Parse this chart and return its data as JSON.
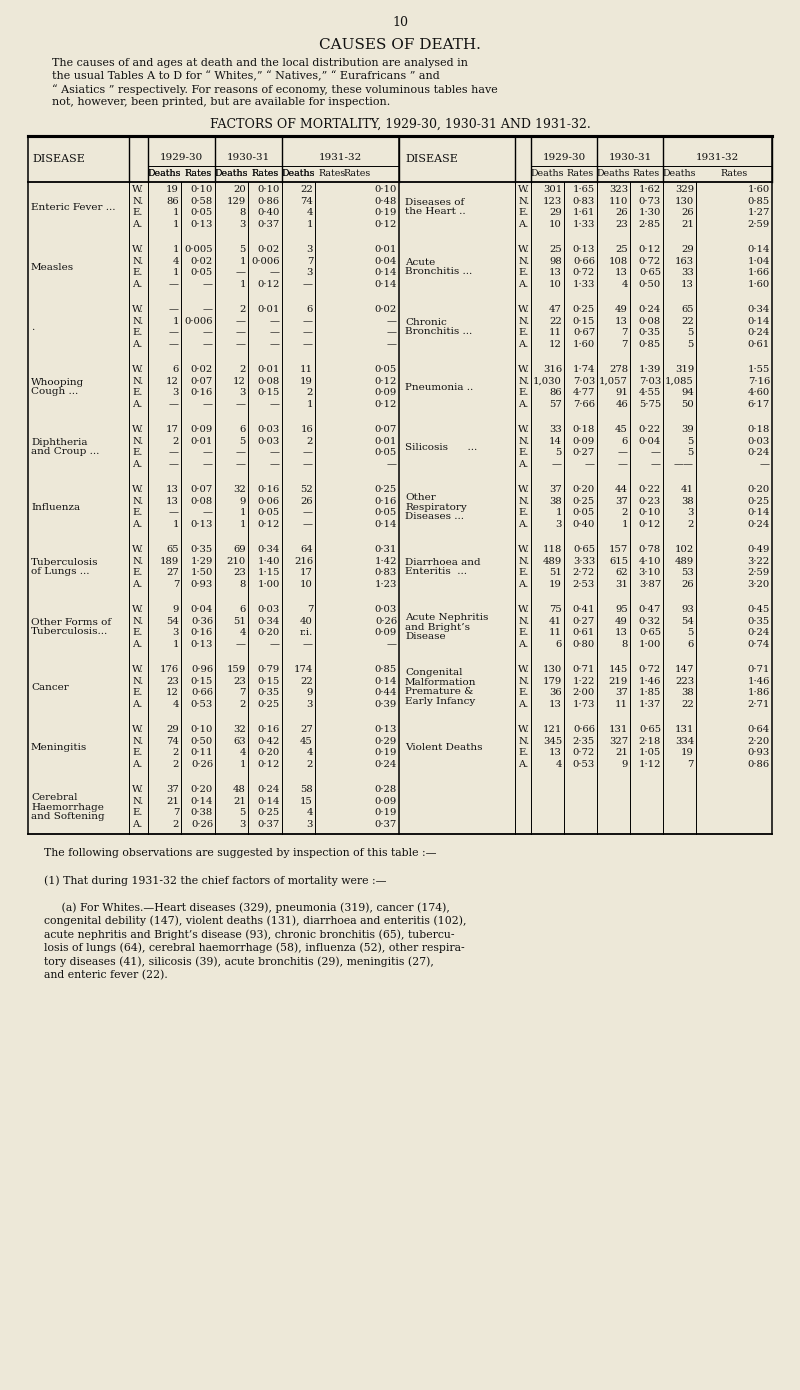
{
  "page_number": "10",
  "main_title": "CAUSES OF DEATH.",
  "intro_text": "The causes of and ages at death and the local distribution are analysed in\nthe usual Tables A to D for “ Whites,” “ Natives,” “ Eurafricans ” and\n“ Asiatics ” respectively. For reasons of economy, these voluminous tables have\nnot, however, been printed, but are available for inspection.",
  "table_title": "FACTORS OF MORTALITY, 1929-30, 1930-31 AND 1931-32.",
  "bg_color": "#ede8d8",
  "text_color": "#111111",
  "footer_text": "The following observations are suggested by inspection of this table :—\n\n(1) That during 1931-32 the chief factors of mortality were :—\n\n     (a) For Whites.—Heart diseases (329), pneumonia (319), cancer (174),\ncongenital debility (147), violent deaths (131), diarrhoea and enteritis (102),\nacute nephritis and Bright’s disease (93), chronic bronchitis (65), tubercu-\nlosis of lungs (64), cerebral haemorrhage (58), influenza (52), other respira-\ntory diseases (41), silicosis (39), acute bronchitis (29), meningitis (27),\nand enteric fever (22).",
  "left_diseases": [
    "Enteric Fever ...",
    "Measles",
    ".",
    "Whooping\nCough ...",
    "Diphtheria\nand Croup ...",
    "Influenza",
    "Tuberculosis\nof Lungs ...",
    "Other Forms of\nTuberculosis...",
    "Cancer",
    "Meningitis",
    "Cerebral\nHaemorrhage\nand Softening"
  ],
  "right_diseases": [
    "Diseases of\nthe Heart ..",
    "Acute\nBronchitis ...",
    "Chronic\nBronchitis ...",
    "Pneumonia ..",
    "Silicosis      ...",
    "Other\nRespiratory\nDiseases ...",
    "Diarrhoea and\nEnteritis  ...",
    "Acute Nephritis\nand Bright’s\nDisease",
    "Congenital\nMalformation\nPremature &\nEarly Infancy",
    "Violent Deaths",
    ""
  ],
  "left_data": [
    [
      [
        "W",
        "19",
        "0·10",
        "20",
        "0·10",
        "22",
        "0·10"
      ],
      [
        "N",
        "86",
        "0·58",
        "129",
        "0·86",
        "74",
        "0·48"
      ],
      [
        "E",
        "1",
        "0·05",
        "8",
        "0·40",
        "4",
        "0·19"
      ],
      [
        "A",
        "1",
        "0·13",
        "3",
        "0·37",
        "1",
        "0·12"
      ]
    ],
    [
      [
        "W",
        "1",
        "0·005",
        "5",
        "0·02",
        "3",
        "0·01"
      ],
      [
        "N",
        "4",
        "0·02",
        "1",
        "0·006",
        "7",
        "0·04"
      ],
      [
        "E",
        "1",
        "0·05",
        "—",
        "—",
        "3",
        "0·14"
      ],
      [
        "A",
        "—",
        "—",
        "1",
        "0·12",
        "—",
        "0·14"
      ]
    ],
    [
      [
        "W",
        "—",
        "—",
        "2",
        "0·01",
        "6",
        "0·02"
      ],
      [
        "N",
        "1",
        "0·006",
        "—",
        "—",
        "—",
        "—"
      ],
      [
        "E",
        "—",
        "—",
        "—",
        "—",
        "—",
        "—"
      ],
      [
        "A",
        "—",
        "—",
        "—",
        "—",
        "—",
        "—"
      ]
    ],
    [
      [
        "W",
        "6",
        "0·02",
        "2",
        "0·01",
        "11",
        "0·05"
      ],
      [
        "N",
        "12",
        "0·07",
        "12",
        "0·08",
        "19",
        "0·12"
      ],
      [
        "E",
        "3",
        "0·16",
        "3",
        "0·15",
        "2",
        "0·09"
      ],
      [
        "A",
        "—",
        "—",
        "—",
        "—",
        "1",
        "0·12"
      ]
    ],
    [
      [
        "W",
        "17",
        "0·09",
        "6",
        "0·03",
        "16",
        "0·07"
      ],
      [
        "N",
        "2",
        "0·01",
        "5",
        "0·03",
        "2",
        "0·01"
      ],
      [
        "E",
        "—",
        "—",
        "—",
        "—",
        "—",
        "0·05"
      ],
      [
        "A",
        "—",
        "—",
        "—",
        "—",
        "—",
        "—"
      ]
    ],
    [
      [
        "W",
        "13",
        "0·07",
        "32",
        "0·16",
        "52",
        "0·25"
      ],
      [
        "N",
        "13",
        "0·08",
        "9",
        "0·06",
        "26",
        "0·16"
      ],
      [
        "E",
        "—",
        "—",
        "1",
        "0·05",
        "—",
        "0·05"
      ],
      [
        "A",
        "1",
        "0·13",
        "1",
        "0·12",
        "—",
        "0·14"
      ]
    ],
    [
      [
        "W",
        "65",
        "0·35",
        "69",
        "0·34",
        "64",
        "0·31"
      ],
      [
        "N",
        "189",
        "1·29",
        "210",
        "1·40",
        "216",
        "1·42"
      ],
      [
        "E",
        "27",
        "1·50",
        "23",
        "1·15",
        "17",
        "0·83"
      ],
      [
        "A",
        "7",
        "0·93",
        "8",
        "1·00",
        "10",
        "1·23"
      ]
    ],
    [
      [
        "W",
        "9",
        "0·04",
        "6",
        "0·03",
        "7",
        "0·03"
      ],
      [
        "N",
        "54",
        "0·36",
        "51",
        "0·34",
        "40",
        "0·26"
      ],
      [
        "E",
        "3",
        "0·16",
        "4",
        "0·20",
        "r.i.",
        "0·09"
      ],
      [
        "A",
        "1",
        "0·13",
        "—",
        "—",
        "—",
        "—"
      ]
    ],
    [
      [
        "W",
        "176",
        "0·96",
        "159",
        "0·79",
        "174",
        "0·85"
      ],
      [
        "N",
        "23",
        "0·15",
        "23",
        "0·15",
        "22",
        "0·14"
      ],
      [
        "E",
        "12",
        "0·66",
        "7",
        "0·35",
        "9",
        "0·44"
      ],
      [
        "A",
        "4",
        "0·53",
        "2",
        "0·25",
        "3",
        "0·39"
      ]
    ],
    [
      [
        "W",
        "29",
        "0·10",
        "32",
        "0·16",
        "27",
        "0·13"
      ],
      [
        "N",
        "74",
        "0·50",
        "63",
        "0·42",
        "45",
        "0·29"
      ],
      [
        "E",
        "2",
        "0·11",
        "4",
        "0·20",
        "4",
        "0·19"
      ],
      [
        "A",
        "2",
        "0·26",
        "1",
        "0·12",
        "2",
        "0·24"
      ]
    ],
    [
      [
        "W",
        "37",
        "0·20",
        "48",
        "0·24",
        "58",
        "0·28"
      ],
      [
        "N",
        "21",
        "0·14",
        "21",
        "0·14",
        "15",
        "0·09"
      ],
      [
        "E",
        "7",
        "0·38",
        "5",
        "0·25",
        "4",
        "0·19"
      ],
      [
        "A",
        "2",
        "0·26",
        "3",
        "0·37",
        "3",
        "0·37"
      ]
    ]
  ],
  "right_data": [
    [
      [
        "W",
        "301",
        "1·65",
        "323",
        "1·62",
        "329",
        "1·60"
      ],
      [
        "N",
        "123",
        "0·83",
        "110",
        "0·73",
        "130",
        "0·85"
      ],
      [
        "E",
        "29",
        "1·61",
        "26",
        "1·30",
        "26",
        "1·27"
      ],
      [
        "A",
        "10",
        "1·33",
        "23",
        "2·85",
        "21",
        "2·59"
      ]
    ],
    [
      [
        "W",
        "25",
        "0·13",
        "25",
        "0·12",
        "29",
        "0·14"
      ],
      [
        "N",
        "98",
        "0·66",
        "108",
        "0·72",
        "163",
        "1·04"
      ],
      [
        "E",
        "13",
        "0·72",
        "13",
        "0·65",
        "33",
        "1·66"
      ],
      [
        "A",
        "10",
        "1·33",
        "4",
        "0·50",
        "13",
        "1·60"
      ]
    ],
    [
      [
        "W",
        "47",
        "0·25",
        "49",
        "0·24",
        "65",
        "0·34"
      ],
      [
        "N",
        "22",
        "0·15",
        "13",
        "0·08",
        "22",
        "0·14"
      ],
      [
        "E",
        "11",
        "0·67",
        "7",
        "0·35",
        "5",
        "0·24"
      ],
      [
        "A",
        "12",
        "1·60",
        "7",
        "0·85",
        "5",
        "0·61"
      ]
    ],
    [
      [
        "W",
        "316",
        "1·74",
        "278",
        "1·39",
        "319",
        "1·55"
      ],
      [
        "N",
        "1,030",
        "7·03",
        "1,057",
        "7·03",
        "1,085",
        "7·16"
      ],
      [
        "E",
        "86",
        "4·77",
        "91",
        "4·55",
        "94",
        "4·60"
      ],
      [
        "A",
        "57",
        "7·66",
        "46",
        "5·75",
        "50",
        "6·17"
      ]
    ],
    [
      [
        "W",
        "33",
        "0·18",
        "45",
        "0·22",
        "39",
        "0·18"
      ],
      [
        "N",
        "14",
        "0·09",
        "6",
        "0·04",
        "5",
        "0·03"
      ],
      [
        "E",
        "5",
        "0·27",
        "—",
        "—",
        "5",
        "0·24"
      ],
      [
        "A",
        "—",
        "—",
        "—",
        "—",
        "——",
        "—"
      ]
    ],
    [
      [
        "W",
        "37",
        "0·20",
        "44",
        "0·22",
        "41",
        "0·20"
      ],
      [
        "N",
        "38",
        "0·25",
        "37",
        "0·23",
        "38",
        "0·25"
      ],
      [
        "E",
        "1",
        "0·05",
        "2",
        "0·10",
        "3",
        "0·14"
      ],
      [
        "A",
        "3",
        "0·40",
        "1",
        "0·12",
        "2",
        "0·24"
      ]
    ],
    [
      [
        "W",
        "118",
        "0·65",
        "157",
        "0·78",
        "102",
        "0·49"
      ],
      [
        "N",
        "489",
        "3·33",
        "615",
        "4·10",
        "489",
        "3·22"
      ],
      [
        "E",
        "51",
        "2·72",
        "62",
        "3·10",
        "53",
        "2·59"
      ],
      [
        "A",
        "19",
        "2·53",
        "31",
        "3·87",
        "26",
        "3·20"
      ]
    ],
    [
      [
        "W",
        "75",
        "0·41",
        "95",
        "0·47",
        "93",
        "0·45"
      ],
      [
        "N",
        "41",
        "0·27",
        "49",
        "0·32",
        "54",
        "0·35"
      ],
      [
        "E",
        "11",
        "0·61",
        "13",
        "0·65",
        "5",
        "0·24"
      ],
      [
        "A",
        "6",
        "0·80",
        "8",
        "1·00",
        "6",
        "0·74"
      ]
    ],
    [
      [
        "W",
        "130",
        "0·71",
        "145",
        "0·72",
        "147",
        "0·71"
      ],
      [
        "N",
        "179",
        "1·22",
        "219",
        "1·46",
        "223",
        "1·46"
      ],
      [
        "E",
        "36",
        "2·00",
        "37",
        "1·85",
        "38",
        "1·86"
      ],
      [
        "A",
        "13",
        "1·73",
        "11",
        "1·37",
        "22",
        "2·71"
      ]
    ],
    [
      [
        "W",
        "121",
        "0·66",
        "131",
        "0·65",
        "131",
        "0·64"
      ],
      [
        "N",
        "345",
        "2·35",
        "327",
        "2·18",
        "334",
        "2·20"
      ],
      [
        "E",
        "13",
        "0·72",
        "21",
        "1·05",
        "19",
        "0·93"
      ],
      [
        "A",
        "4",
        "0·53",
        "9",
        "1·12",
        "7",
        "0·86"
      ]
    ],
    [
      [],
      [],
      [],
      []
    ]
  ]
}
